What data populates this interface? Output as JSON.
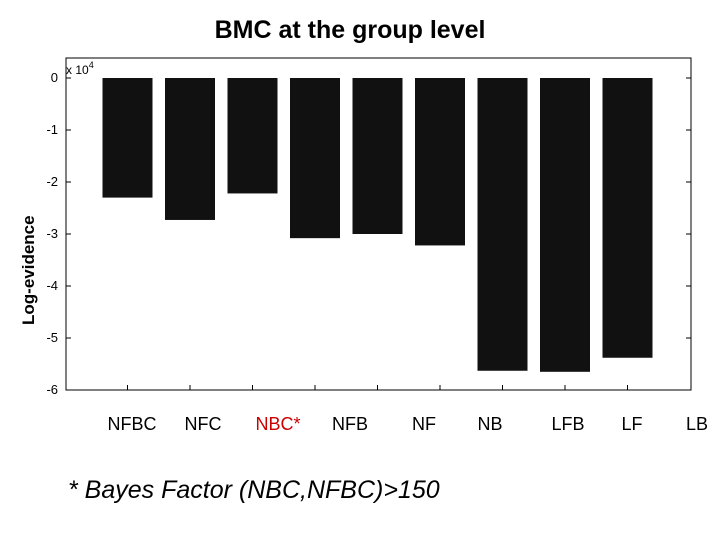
{
  "chart_data": {
    "type": "bar",
    "title": "BMC at the group level",
    "ylabel": "Log-evidence",
    "xlabel": "",
    "scale_label": "x 10",
    "scale_exponent": "4",
    "categories": [
      "NFBC",
      "NFC",
      "NBC*",
      "NFB",
      "NF",
      "NB",
      "LFB",
      "LF",
      "LB"
    ],
    "category_colors": [
      "#000000",
      "#000000",
      "#cc0000",
      "#000000",
      "#000000",
      "#000000",
      "#000000",
      "#000000",
      "#000000"
    ],
    "values": [
      -2.3,
      -2.73,
      -2.22,
      -3.08,
      -3.0,
      -3.22,
      -5.63,
      -5.65,
      -5.38
    ],
    "plotted_categories": [
      "NFBC",
      "NFC",
      "NBC*",
      "NFB",
      "NF",
      "NB",
      "LFB",
      "LF",
      "LB"
    ],
    "ylim": [
      -6,
      0
    ],
    "yticks": [
      0,
      -1,
      -2,
      -3,
      -4,
      -5,
      -6
    ],
    "ytick_labels": [
      "0",
      "-1",
      "-2",
      "-3",
      "-4",
      "-5",
      "-6"
    ],
    "bar_color": "#111111",
    "grid": false
  },
  "footnote": "* Bayes Factor (NBC,NFBC)>150"
}
